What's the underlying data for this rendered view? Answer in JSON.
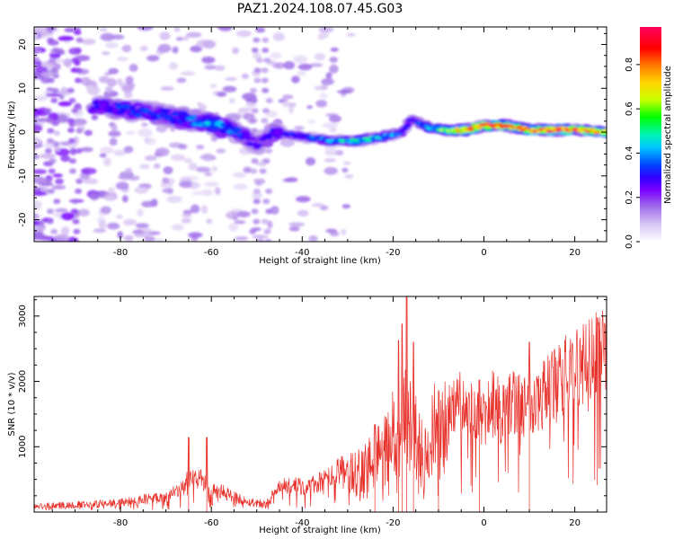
{
  "figure": {
    "title": "PAZ1.2024.108.07.45.G03"
  },
  "colors": {
    "axis": "#000000",
    "snr_line": "#e8302a",
    "colormap": [
      "#ffffff",
      "#d9c6f3",
      "#a070e8",
      "#7b00ff",
      "#2f00ff",
      "#0048ff",
      "#00c8ff",
      "#00f5b0",
      "#00ff00",
      "#c8ff00",
      "#ffd700",
      "#ff7a00",
      "#ff0000",
      "#ff0060"
    ]
  },
  "chart_data": [
    {
      "type": "heatmap",
      "title": "",
      "xlabel": "Height of straight line (km)",
      "ylabel": "Frequency (Hz)",
      "xlim": [
        -99,
        27
      ],
      "ylim": [
        -25,
        24
      ],
      "xticks": [
        -80,
        -60,
        -40,
        -20,
        0,
        20
      ],
      "yticks": [
        -20,
        -10,
        0,
        10,
        20
      ],
      "grid": false,
      "colorbar": {
        "label": "Normalized spectral amplitude",
        "range": [
          0,
          0.97
        ],
        "ticks": [
          0.0,
          0.2,
          0.4,
          0.6,
          0.8
        ]
      },
      "ridge": {
        "x": [
          -84,
          -78,
          -72,
          -66,
          -60,
          -54,
          -50,
          -46,
          -40,
          -34,
          -28,
          -22,
          -18,
          -16,
          -12,
          -8,
          -4,
          0,
          5,
          10,
          15,
          20,
          27
        ],
        "freq": [
          6,
          5,
          4,
          3,
          2,
          0,
          -3,
          0,
          -1,
          -2,
          -2,
          -1,
          0,
          3,
          1,
          0.5,
          0.5,
          1.5,
          1.5,
          0.5,
          0.5,
          0.5,
          0
        ],
        "amplitude": [
          0.3,
          0.35,
          0.35,
          0.35,
          0.45,
          0.35,
          0.25,
          0.3,
          0.35,
          0.45,
          0.55,
          0.45,
          0.35,
          0.3,
          0.45,
          0.7,
          0.85,
          0.9,
          0.9,
          0.85,
          0.95,
          0.9,
          0.8
        ]
      }
    },
    {
      "type": "line",
      "title": "",
      "xlabel": "Height of straight line (km)",
      "ylabel": "SNR (10 * v/v)",
      "xlim": [
        -99,
        27
      ],
      "ylim": [
        0,
        3300
      ],
      "xticks": [
        -80,
        -60,
        -40,
        -20,
        0,
        20
      ],
      "yticks": [
        1000,
        2000,
        3000
      ],
      "grid": false,
      "series": [
        {
          "x": [
            -99,
            -95,
            -90,
            -85,
            -80,
            -75,
            -70,
            -67,
            -65,
            -63,
            -61,
            -59,
            -57,
            -55,
            -52,
            -50,
            -48,
            -46,
            -44,
            -42,
            -40,
            -37,
            -34,
            -32,
            -30,
            -28,
            -26,
            -24,
            -22,
            -20,
            -19,
            -18,
            -17,
            -16,
            -15,
            -14,
            -13,
            -12,
            -11,
            -10,
            -9,
            -8,
            -6,
            -4,
            -2,
            0,
            2,
            4,
            6,
            8,
            10,
            12,
            14,
            16,
            18,
            20,
            22,
            24,
            27
          ],
          "values": [
            90,
            100,
            120,
            130,
            150,
            200,
            250,
            330,
            500,
            560,
            420,
            340,
            300,
            240,
            160,
            150,
            130,
            300,
            420,
            420,
            380,
            440,
            540,
            650,
            680,
            640,
            800,
            900,
            950,
            1300,
            1200,
            1500,
            1650,
            1400,
            1200,
            1000,
            900,
            1000,
            1350,
            1200,
            1250,
            1550,
            1700,
            1650,
            1550,
            1450,
            1700,
            1550,
            1750,
            1650,
            1850,
            1800,
            1950,
            2000,
            2150,
            2200,
            2250,
            2400,
            2450
          ],
          "peaks": [
            {
              "x": -65,
              "y": 1140
            },
            {
              "x": -61,
              "y": 1140
            },
            {
              "x": -24,
              "y": 1340
            },
            {
              "x": -18.8,
              "y": 2630
            },
            {
              "x": -18,
              "y": 2880
            },
            {
              "x": -17,
              "y": 3300
            },
            {
              "x": -15.5,
              "y": 2600
            },
            {
              "x": -10,
              "y": 1860
            },
            {
              "x": -1,
              "y": 2020
            },
            {
              "x": 10,
              "y": 2600
            },
            {
              "x": 27,
              "y": 3010
            }
          ]
        }
      ]
    }
  ]
}
